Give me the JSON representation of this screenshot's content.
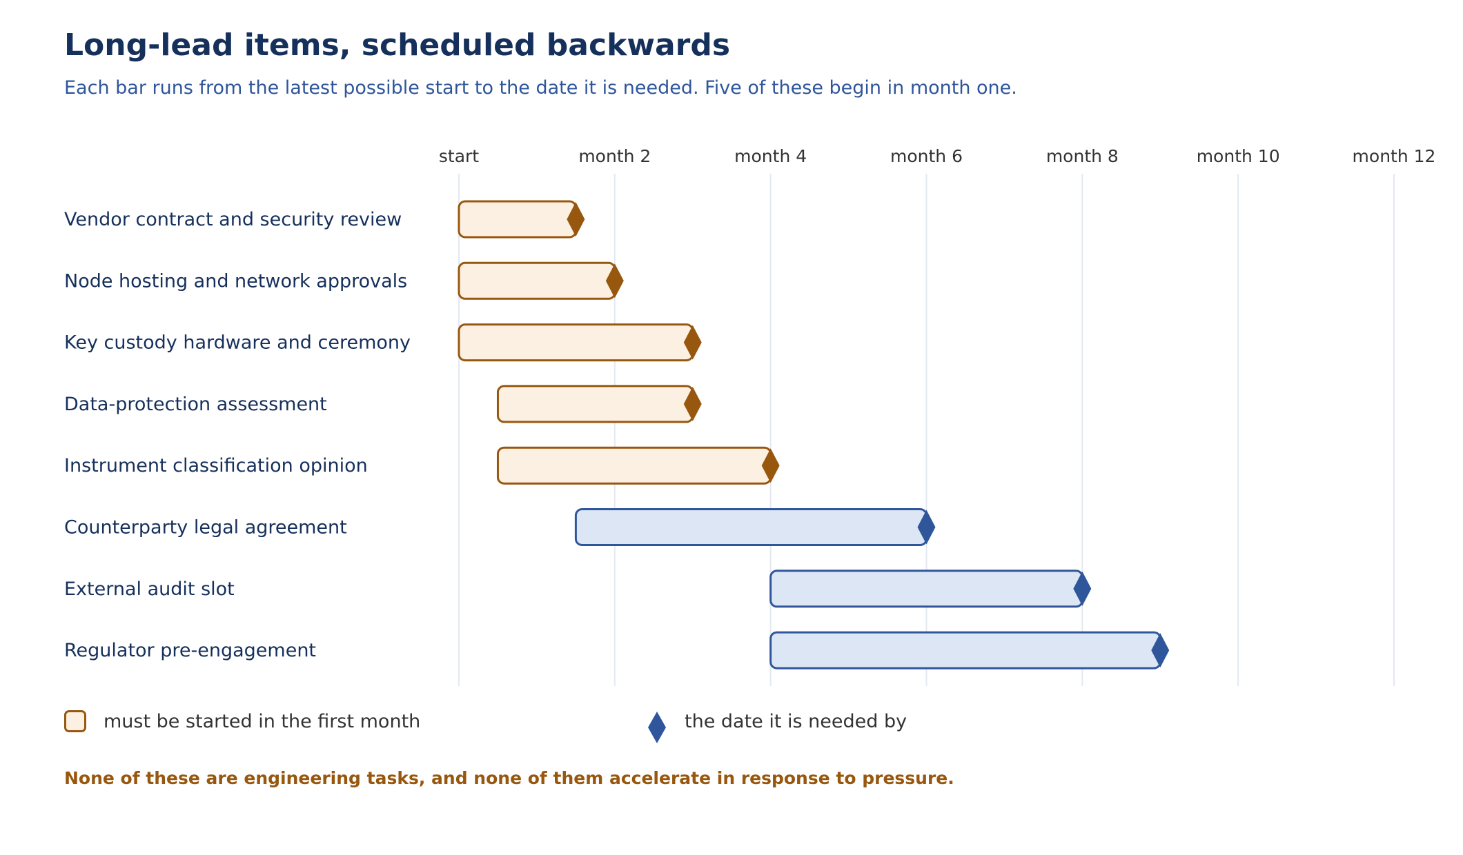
{
  "chart_data": {
    "type": "gantt",
    "title": "Long-lead items, scheduled backwards",
    "subtitle": "Each bar runs from the latest possible start to the date it is needed. Five of these begin in month one.",
    "x_axis": {
      "range": [
        0,
        12
      ],
      "ticks": [
        {
          "value": 0,
          "label": "start"
        },
        {
          "value": 2,
          "label": "month 2"
        },
        {
          "value": 4,
          "label": "month 4"
        },
        {
          "value": 6,
          "label": "month 6"
        },
        {
          "value": 8,
          "label": "month 8"
        },
        {
          "value": 10,
          "label": "month 10"
        },
        {
          "value": 12,
          "label": "month 12"
        }
      ],
      "grid": true
    },
    "tasks": [
      {
        "label": "Vendor contract and security review",
        "start": 0,
        "end": 1.5,
        "first_month": true
      },
      {
        "label": "Node hosting and network approvals",
        "start": 0,
        "end": 2,
        "first_month": true
      },
      {
        "label": "Key custody hardware and ceremony",
        "start": 0,
        "end": 3,
        "first_month": true
      },
      {
        "label": "Data-protection assessment",
        "start": 0.5,
        "end": 3,
        "first_month": true
      },
      {
        "label": "Instrument classification opinion",
        "start": 0.5,
        "end": 4,
        "first_month": true
      },
      {
        "label": "Counterparty legal agreement",
        "start": 1.5,
        "end": 6,
        "first_month": false
      },
      {
        "label": "External audit slot",
        "start": 4,
        "end": 8,
        "first_month": false
      },
      {
        "label": "Regulator pre-engagement",
        "start": 4,
        "end": 9,
        "first_month": false
      }
    ],
    "legend": {
      "first_month_label": "must be started in the first month",
      "needed_by_label": "the date it is needed by",
      "placement": "bottom-left"
    },
    "footnote": "None of these are engineering tasks, and none of them accelerate in response to pressure.",
    "colors": {
      "first_month_fill": "#fcf0e2",
      "first_month_stroke": "#98570e",
      "other_fill": "#dce6f5",
      "other_stroke": "#2f569b",
      "grid": "#e3e8f2",
      "title": "#16305c",
      "task_label": "#16305c",
      "tick_label": "#333333"
    }
  }
}
